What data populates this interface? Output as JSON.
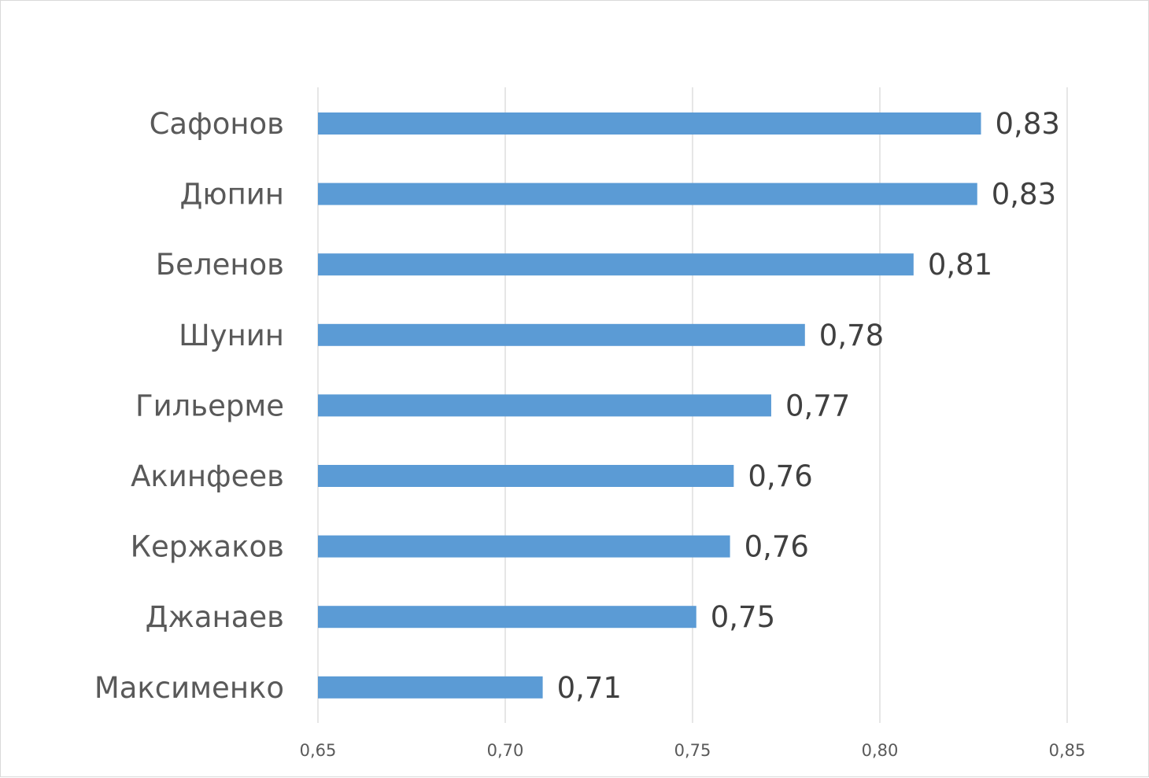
{
  "chart_data": {
    "type": "bar",
    "orientation": "horizontal",
    "categories": [
      "Сафонов",
      "Дюпин",
      "Беленов",
      "Шунин",
      "Гильерме",
      "Акинфеев",
      "Кержаков",
      "Джанаев",
      "Максименко"
    ],
    "values": [
      0.827,
      0.826,
      0.809,
      0.78,
      0.771,
      0.761,
      0.76,
      0.751,
      0.71
    ],
    "value_labels": [
      "0,83",
      "0,83",
      "0,81",
      "0,78",
      "0,77",
      "0,76",
      "0,76",
      "0,75",
      "0,71"
    ],
    "xlim": [
      0.65,
      0.85
    ],
    "xticks": [
      0.65,
      0.7,
      0.75,
      0.8,
      0.85
    ],
    "xtick_labels": [
      "0,65",
      "0,70",
      "0,75",
      "0,80",
      "0,85"
    ],
    "title": "",
    "xlabel": "",
    "ylabel": "",
    "grid": "vertical",
    "legend": "none",
    "bar_color": "#5b9bd5",
    "grid_color": "#d9d9d9"
  }
}
